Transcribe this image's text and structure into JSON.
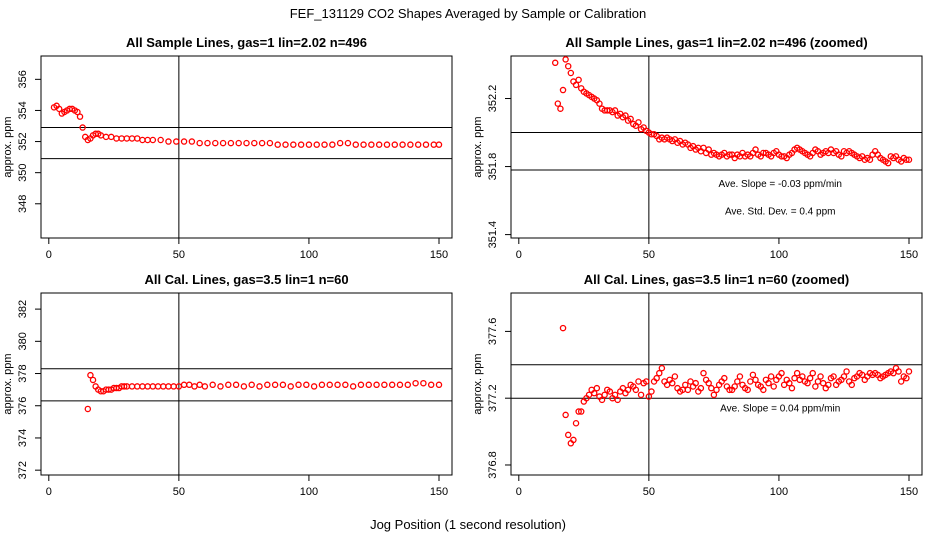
{
  "page": {
    "title": "FEF_131129  CO2 Shapes Averaged by Sample or Calibration",
    "xlabel": "Jog Position (1 second resolution)"
  },
  "colors": {
    "points": "#ff0000",
    "axes": "#000000",
    "background": "#ffffff"
  },
  "chart_data": [
    {
      "type": "scatter",
      "title": "All Sample Lines, gas=1 lin=2.02 n=496",
      "xlabel": "",
      "ylabel": "approx. ppm",
      "xlim": [
        -3,
        155
      ],
      "ylim": [
        345.8,
        357.5
      ],
      "xticks": [
        0,
        50,
        100,
        150
      ],
      "yticks": [
        348,
        350,
        352,
        354,
        356
      ],
      "vline": 50,
      "hlines": [
        350.9,
        352.9
      ],
      "annotations": [],
      "x": [
        2,
        3,
        4,
        5,
        6,
        7,
        8,
        9,
        10,
        11,
        12,
        13,
        14,
        15,
        16,
        17,
        18,
        19,
        20,
        22,
        24,
        26,
        28,
        30,
        32,
        34,
        36,
        38,
        40,
        43,
        46,
        49,
        52,
        55,
        58,
        61,
        64,
        67,
        70,
        73,
        76,
        79,
        82,
        85,
        88,
        91,
        94,
        97,
        100,
        103,
        106,
        109,
        112,
        115,
        118,
        121,
        124,
        127,
        130,
        133,
        136,
        139,
        142,
        145,
        148,
        150
      ],
      "y": [
        354.2,
        354.3,
        354.1,
        353.8,
        353.9,
        354.0,
        354.1,
        354.1,
        354.0,
        353.9,
        353.6,
        352.9,
        352.3,
        352.1,
        352.2,
        352.4,
        352.5,
        352.5,
        352.4,
        352.3,
        352.3,
        352.2,
        352.2,
        352.2,
        352.2,
        352.2,
        352.1,
        352.1,
        352.1,
        352.1,
        352.0,
        352.0,
        352.0,
        352.0,
        351.9,
        351.9,
        351.9,
        351.9,
        351.9,
        351.9,
        351.9,
        351.9,
        351.9,
        351.9,
        351.8,
        351.8,
        351.8,
        351.8,
        351.8,
        351.8,
        351.8,
        351.8,
        351.9,
        351.9,
        351.8,
        351.8,
        351.8,
        351.8,
        351.8,
        351.8,
        351.8,
        351.8,
        351.8,
        351.8,
        351.8,
        351.8
      ]
    },
    {
      "type": "scatter",
      "title": "All Sample Lines, gas=1 lin=2.02 n=496 (zoomed)",
      "xlabel": "",
      "ylabel": "approx. ppm",
      "xlim": [
        -3,
        155
      ],
      "ylim": [
        351.38,
        352.45
      ],
      "xticks": [
        0,
        50,
        100,
        150
      ],
      "yticks": [
        351.4,
        351.8,
        352.2
      ],
      "vline": 50,
      "hlines": [
        351.78,
        352.0
      ],
      "annotations": [
        "Ave. Slope =  -0.03  ppm/min",
        "Ave. Std. Dev. =  0.4  ppm"
      ],
      "x": [
        14,
        15,
        16,
        17,
        18,
        19,
        20,
        21,
        22,
        23,
        24,
        25,
        26,
        27,
        28,
        29,
        30,
        31,
        32,
        33,
        34,
        35,
        36,
        37,
        38,
        39,
        40,
        41,
        42,
        43,
        44,
        45,
        46,
        47,
        48,
        49,
        50,
        51,
        52,
        53,
        54,
        55,
        56,
        57,
        58,
        59,
        60,
        61,
        62,
        63,
        64,
        65,
        66,
        67,
        68,
        69,
        70,
        71,
        72,
        73,
        74,
        75,
        76,
        77,
        78,
        79,
        80,
        81,
        82,
        83,
        84,
        85,
        86,
        87,
        88,
        89,
        90,
        91,
        92,
        93,
        94,
        95,
        96,
        97,
        98,
        99,
        100,
        101,
        102,
        103,
        104,
        105,
        106,
        107,
        108,
        109,
        110,
        111,
        112,
        113,
        114,
        115,
        116,
        117,
        118,
        119,
        120,
        121,
        122,
        123,
        124,
        125,
        126,
        127,
        128,
        129,
        130,
        131,
        132,
        133,
        134,
        135,
        136,
        137,
        138,
        139,
        140,
        141,
        142,
        143,
        144,
        145,
        146,
        147,
        148,
        149,
        150
      ],
      "y": [
        352.41,
        352.17,
        352.14,
        352.25,
        352.43,
        352.39,
        352.35,
        352.3,
        352.28,
        352.31,
        352.26,
        352.24,
        352.23,
        352.22,
        352.21,
        352.2,
        352.19,
        352.17,
        352.14,
        352.13,
        352.13,
        352.13,
        352.12,
        352.13,
        352.1,
        352.11,
        352.09,
        352.1,
        352.07,
        352.08,
        352.05,
        352.04,
        352.06,
        352.02,
        352.03,
        352.01,
        352.0,
        351.99,
        351.99,
        351.98,
        351.96,
        351.97,
        351.96,
        351.97,
        351.96,
        351.95,
        351.96,
        351.94,
        351.95,
        351.93,
        351.94,
        351.93,
        351.91,
        351.92,
        351.9,
        351.91,
        351.89,
        351.91,
        351.88,
        351.9,
        351.87,
        351.88,
        351.87,
        351.86,
        351.87,
        351.88,
        351.86,
        351.87,
        351.87,
        351.85,
        351.87,
        351.86,
        351.88,
        351.86,
        351.87,
        351.86,
        351.88,
        351.9,
        351.87,
        351.86,
        351.88,
        351.88,
        351.87,
        351.86,
        351.88,
        351.89,
        351.87,
        351.86,
        351.86,
        351.85,
        351.87,
        351.88,
        351.9,
        351.91,
        351.9,
        351.89,
        351.88,
        351.87,
        351.86,
        351.88,
        351.9,
        351.89,
        351.87,
        351.88,
        351.89,
        351.88,
        351.9,
        351.88,
        351.89,
        351.87,
        351.86,
        351.89,
        351.88,
        351.89,
        351.88,
        351.87,
        351.86,
        351.85,
        351.86,
        351.84,
        351.85,
        351.84,
        351.87,
        351.89,
        351.87,
        351.85,
        351.84,
        351.83,
        351.82,
        351.86,
        351.85,
        351.86,
        351.84,
        351.83,
        351.85,
        351.84,
        351.84
      ]
    },
    {
      "type": "scatter",
      "title": "All Cal. Lines, gas=3.5 lin=1 n=60",
      "xlabel": "",
      "ylabel": "approx. ppm",
      "xlim": [
        -3,
        155
      ],
      "ylim": [
        371.7,
        383.0
      ],
      "xticks": [
        0,
        50,
        100,
        150
      ],
      "yticks": [
        372,
        374,
        376,
        378,
        380,
        382
      ],
      "vline": 50,
      "hlines": [
        376.3,
        378.3
      ],
      "annotations": [],
      "x": [
        15,
        16,
        17,
        18,
        19,
        20,
        21,
        22,
        23,
        24,
        25,
        26,
        27,
        28,
        29,
        30,
        32,
        34,
        36,
        38,
        40,
        42,
        44,
        46,
        48,
        50,
        52,
        54,
        56,
        58,
        60,
        63,
        66,
        69,
        72,
        75,
        78,
        81,
        84,
        87,
        90,
        93,
        96,
        99,
        102,
        105,
        108,
        111,
        114,
        117,
        120,
        123,
        126,
        129,
        132,
        135,
        138,
        141,
        144,
        147,
        150
      ],
      "y": [
        375.8,
        377.9,
        377.6,
        377.2,
        377.0,
        376.9,
        376.9,
        377.0,
        377.0,
        377.0,
        377.1,
        377.1,
        377.1,
        377.2,
        377.2,
        377.2,
        377.2,
        377.2,
        377.2,
        377.2,
        377.2,
        377.2,
        377.2,
        377.2,
        377.2,
        377.2,
        377.3,
        377.3,
        377.2,
        377.3,
        377.2,
        377.3,
        377.2,
        377.3,
        377.3,
        377.2,
        377.3,
        377.2,
        377.3,
        377.3,
        377.3,
        377.2,
        377.3,
        377.3,
        377.2,
        377.3,
        377.3,
        377.3,
        377.3,
        377.2,
        377.3,
        377.3,
        377.3,
        377.3,
        377.3,
        377.3,
        377.3,
        377.4,
        377.4,
        377.3,
        377.3
      ]
    },
    {
      "type": "scatter",
      "title": "All Cal. Lines, gas=3.5 lin=1 n=60 (zoomed)",
      "xlabel": "",
      "ylabel": "approx. ppm",
      "xlim": [
        -3,
        155
      ],
      "ylim": [
        376.74,
        377.83
      ],
      "xticks": [
        0,
        50,
        100,
        150
      ],
      "yticks": [
        376.8,
        377.2,
        377.6
      ],
      "vline": 50,
      "hlines": [
        377.2,
        377.4
      ],
      "annotations": [
        "Ave. Slope =  0.04  ppm/min"
      ],
      "x": [
        17,
        18,
        19,
        20,
        21,
        22,
        23,
        24,
        25,
        26,
        27,
        28,
        29,
        30,
        31,
        32,
        33,
        34,
        35,
        36,
        37,
        38,
        39,
        40,
        41,
        42,
        43,
        44,
        45,
        46,
        47,
        48,
        49,
        50,
        51,
        52,
        53,
        54,
        55,
        56,
        57,
        58,
        59,
        60,
        61,
        62,
        63,
        64,
        65,
        66,
        67,
        68,
        69,
        70,
        71,
        72,
        73,
        74,
        75,
        76,
        77,
        78,
        79,
        80,
        81,
        82,
        83,
        84,
        85,
        86,
        87,
        88,
        89,
        90,
        91,
        92,
        93,
        94,
        95,
        96,
        97,
        98,
        99,
        100,
        101,
        102,
        103,
        104,
        105,
        106,
        107,
        108,
        109,
        110,
        111,
        112,
        113,
        114,
        115,
        116,
        117,
        118,
        119,
        120,
        121,
        122,
        123,
        124,
        125,
        126,
        127,
        128,
        129,
        130,
        131,
        132,
        133,
        134,
        135,
        136,
        137,
        138,
        139,
        140,
        141,
        142,
        143,
        144,
        145,
        146,
        147,
        148,
        149,
        150
      ],
      "y": [
        377.62,
        377.1,
        376.98,
        376.93,
        376.95,
        377.05,
        377.12,
        377.12,
        377.18,
        377.2,
        377.22,
        377.25,
        377.23,
        377.26,
        377.21,
        377.19,
        377.22,
        377.25,
        377.24,
        377.2,
        377.22,
        377.19,
        377.24,
        377.26,
        377.23,
        377.25,
        377.28,
        377.27,
        377.25,
        377.3,
        377.22,
        377.29,
        377.3,
        377.21,
        377.24,
        377.3,
        377.32,
        377.35,
        377.38,
        377.3,
        377.28,
        377.31,
        377.29,
        377.33,
        377.26,
        377.24,
        377.25,
        377.28,
        377.25,
        377.3,
        377.27,
        377.29,
        377.24,
        377.26,
        377.35,
        377.31,
        377.29,
        377.26,
        377.22,
        377.25,
        377.28,
        377.3,
        377.32,
        377.27,
        377.25,
        377.25,
        377.27,
        377.3,
        377.33,
        377.28,
        377.26,
        377.25,
        377.3,
        377.34,
        377.31,
        377.28,
        377.27,
        377.25,
        377.31,
        377.29,
        377.33,
        377.27,
        377.31,
        377.33,
        377.35,
        377.28,
        377.31,
        377.29,
        377.26,
        377.32,
        377.35,
        377.31,
        377.33,
        377.3,
        377.29,
        377.32,
        377.35,
        377.27,
        377.3,
        377.33,
        377.29,
        377.26,
        377.28,
        377.32,
        377.33,
        377.28,
        377.3,
        377.31,
        377.33,
        377.36,
        377.3,
        377.28,
        377.32,
        377.33,
        377.35,
        377.34,
        377.31,
        377.33,
        377.35,
        377.34,
        377.35,
        377.34,
        377.32,
        377.33,
        377.34,
        377.35,
        377.36,
        377.35,
        377.38,
        377.36,
        377.3,
        377.33,
        377.32,
        377.36
      ]
    }
  ]
}
